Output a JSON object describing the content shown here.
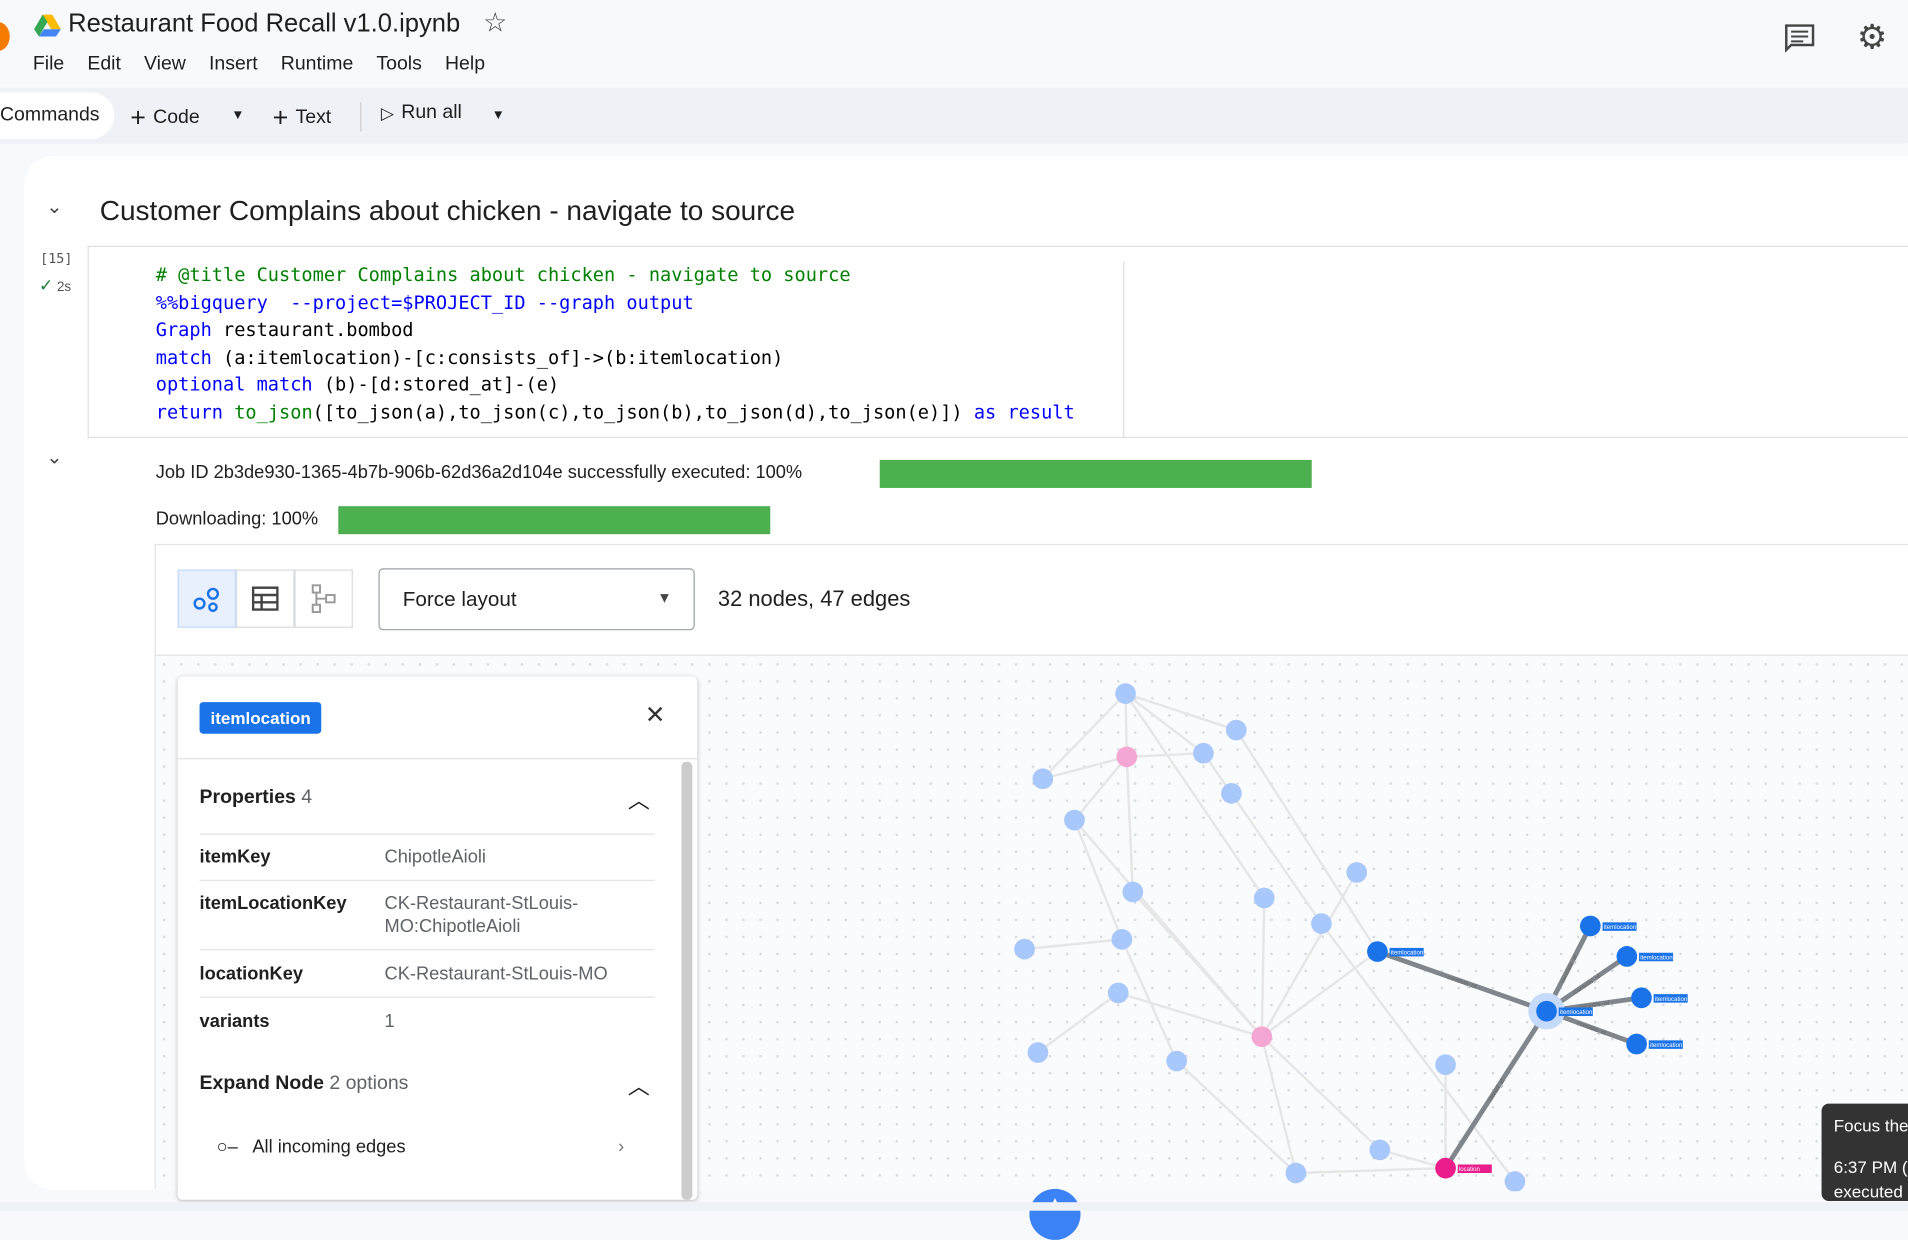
{
  "notebook": {
    "title": "Restaurant Food Recall v1.0.ipynb",
    "menu": [
      "File",
      "Edit",
      "View",
      "Insert",
      "Runtime",
      "Tools",
      "Help"
    ]
  },
  "toolbar": {
    "commands": "Commands",
    "code": "Code",
    "text": "Text",
    "run_all": "Run all"
  },
  "cell": {
    "heading": "Customer Complains about chicken - navigate to source",
    "exec_count": "[15]",
    "duration": "2s",
    "code": {
      "l1": "# @title Customer Complains about chicken - navigate to source",
      "l2": "%%bigquery  --project=$PROJECT_ID --graph output",
      "l3a": "Graph",
      "l3b": " restaurant.bombod",
      "l4a": "match",
      "l4b": " (a:itemlocation)-[c:consists_of]->(b:itemlocation)",
      "l5a": "optional match",
      "l5b": " (b)-[d:stored_at]-(e)",
      "l6a": "return",
      "l6b": "to_json",
      "l6c": "([to_json(a),to_json(c),to_json(b),to_json(d),to_json(e)])",
      "l6d": " as ",
      "l6e": "result"
    }
  },
  "output": {
    "job": "Job  ID  2b3de930-1365-4b7b-906b-62d36a2d104e  successfully  executed:  100%",
    "job_progress": 100,
    "download": "Downloading:  100%",
    "download_progress": 100
  },
  "graph": {
    "layout_select": "Force layout",
    "summary": "32 nodes, 47 edges",
    "node_label_itemlocation": "itemlocation",
    "node_label_location": "location",
    "edge_consists": "consists_of",
    "edge_stored": "stored_at"
  },
  "panel": {
    "badge": "itemlocation",
    "properties_label": "Properties",
    "properties_count": "4",
    "props": [
      {
        "k": "itemKey",
        "v": "ChipotleAioli"
      },
      {
        "k": "itemLocationKey",
        "v": "CK-Restaurant-StLouis-MO:ChipotleAioli"
      },
      {
        "k": "locationKey",
        "v": "CK-Restaurant-StLouis-MO"
      },
      {
        "k": "variants",
        "v": "1"
      }
    ],
    "expand_label": "Expand Node",
    "expand_count": "2 options",
    "incoming": "All incoming edges"
  },
  "tooltip": {
    "l1": "Focus the",
    "l2": "6:37 PM (C",
    "l3": "executed"
  },
  "colors": {
    "accent": "#1a73e8",
    "progress": "#4caf50",
    "pink": "#f4a7d3",
    "magenta": "#e91e8c",
    "light_node": "#a8c7fa"
  }
}
